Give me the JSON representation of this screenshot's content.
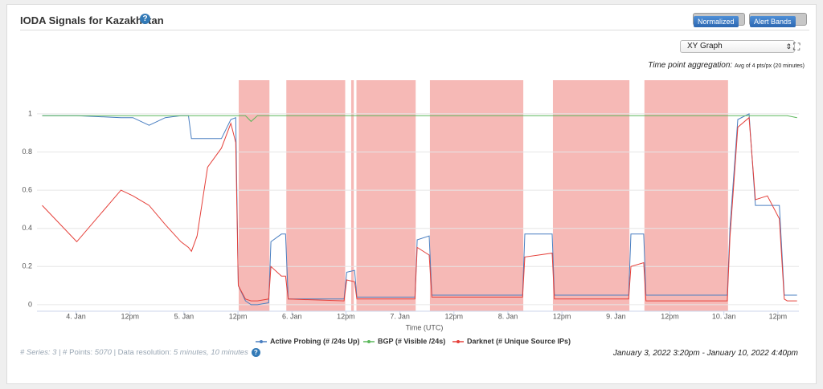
{
  "header": {
    "title": "IODA Signals for Kazakhstan"
  },
  "controls": {
    "normalized": "Normalized",
    "alert_bands": "Alert Bands",
    "view": "XY Graph",
    "aggregation_label": "Time point aggregation:",
    "aggregation_value": "Avg of 4 pts/px (20 minutes)"
  },
  "footer": {
    "series_label": "# Series:",
    "series_count": 3,
    "points_label": "| # Points:",
    "points_count": 5070,
    "resolution_label": "| Data resolution:",
    "resolution": "5 minutes, 10 minutes",
    "range": "January 3, 2022 3:20pm - January 10, 2022 4:40pm"
  },
  "chart_data": {
    "type": "line",
    "x_label": "Time (UTC)",
    "xlim": [
      "2022-01-03T15:20",
      "2022-01-10T16:40"
    ],
    "xticks": [
      {
        "value": "2022-01-04T00:00",
        "label": "4. Jan"
      },
      {
        "value": "2022-01-04T12:00",
        "label": "12pm"
      },
      {
        "value": "2022-01-05T00:00",
        "label": "5. Jan"
      },
      {
        "value": "2022-01-05T12:00",
        "label": "12pm"
      },
      {
        "value": "2022-01-06T00:00",
        "label": "6. Jan"
      },
      {
        "value": "2022-01-06T12:00",
        "label": "12pm"
      },
      {
        "value": "2022-01-07T00:00",
        "label": "7. Jan"
      },
      {
        "value": "2022-01-07T12:00",
        "label": "12pm"
      },
      {
        "value": "2022-01-08T00:00",
        "label": "8. Jan"
      },
      {
        "value": "2022-01-08T12:00",
        "label": "12pm"
      },
      {
        "value": "2022-01-09T00:00",
        "label": "9. Jan"
      },
      {
        "value": "2022-01-09T12:00",
        "label": "12pm"
      },
      {
        "value": "2022-01-10T00:00",
        "label": "10. Jan"
      },
      {
        "value": "2022-01-10T12:00",
        "label": "12pm"
      }
    ],
    "ylim": [
      -0.034,
      1.176
    ],
    "yticks": [
      0,
      0.2,
      0.4,
      0.6,
      0.8,
      1
    ],
    "grid": true,
    "band_color": "#f6b9b6",
    "alert_bands": [
      {
        "from": "2022-01-05T12:10",
        "to": "2022-01-05T19:00"
      },
      {
        "from": "2022-01-05T22:45",
        "to": "2022-01-06T11:50"
      },
      {
        "from": "2022-01-06T13:10",
        "to": "2022-01-06T13:45"
      },
      {
        "from": "2022-01-06T14:20",
        "to": "2022-01-07T03:30"
      },
      {
        "from": "2022-01-07T06:40",
        "to": "2022-01-08T03:25"
      },
      {
        "from": "2022-01-08T10:00",
        "to": "2022-01-09T03:00"
      },
      {
        "from": "2022-01-09T06:20",
        "to": "2022-01-10T00:55"
      }
    ],
    "x": [
      "2022-01-03T16:30",
      "2022-01-04T00:10",
      "2022-01-04T10:00",
      "2022-01-04T12:40",
      "2022-01-04T16:15",
      "2022-01-04T19:50",
      "2022-01-04T23:20",
      "2022-01-05T01:00",
      "2022-01-05T01:40",
      "2022-01-05T02:55",
      "2022-01-05T05:15",
      "2022-01-05T08:20",
      "2022-01-05T10:25",
      "2022-01-05T11:30",
      "2022-01-05T12:05",
      "2022-01-05T13:40",
      "2022-01-05T14:55",
      "2022-01-05T16:20",
      "2022-01-05T18:50",
      "2022-01-05T19:20",
      "2022-01-05T21:40",
      "2022-01-05T22:35",
      "2022-01-05T23:10",
      "2022-01-06T11:35",
      "2022-01-06T12:10",
      "2022-01-06T13:55",
      "2022-01-06T14:25",
      "2022-01-07T03:20",
      "2022-01-07T03:50",
      "2022-01-07T06:30",
      "2022-01-07T07:05",
      "2022-01-08T03:15",
      "2022-01-08T03:45",
      "2022-01-08T09:50",
      "2022-01-08T10:20",
      "2022-01-09T02:50",
      "2022-01-09T03:20",
      "2022-01-09T06:10",
      "2022-01-09T06:40",
      "2022-01-10T00:45",
      "2022-01-10T01:20",
      "2022-01-10T03:05",
      "2022-01-10T05:35",
      "2022-01-10T07:00",
      "2022-01-10T09:40",
      "2022-01-10T12:20",
      "2022-01-10T13:25",
      "2022-01-10T14:05",
      "2022-01-10T16:15"
    ],
    "series": [
      {
        "name": "Active Probing (# /24s Up)",
        "color": "#4a7fc1",
        "values": [
          0.99,
          0.99,
          0.98,
          0.98,
          0.94,
          0.98,
          0.99,
          0.99,
          0.87,
          0.87,
          0.87,
          0.87,
          0.97,
          0.98,
          0.1,
          0.02,
          0.0,
          0.0,
          0.01,
          0.33,
          0.37,
          0.37,
          0.03,
          0.03,
          0.17,
          0.18,
          0.04,
          0.04,
          0.34,
          0.36,
          0.05,
          0.05,
          0.37,
          0.37,
          0.05,
          0.05,
          0.37,
          0.37,
          0.05,
          0.05,
          0.4,
          0.97,
          1.0,
          0.52,
          0.52,
          0.52,
          0.05,
          0.05,
          0.05
        ]
      },
      {
        "name": "BGP (# Visible /24s)",
        "color": "#5cb85c",
        "values": [
          0.99,
          0.99,
          0.99,
          0.99,
          0.99,
          0.99,
          0.99,
          0.99,
          0.99,
          0.99,
          0.99,
          0.99,
          0.99,
          0.99,
          0.99,
          0.99,
          0.96,
          0.99,
          0.99,
          0.99,
          0.99,
          0.99,
          0.99,
          0.99,
          0.99,
          0.99,
          0.99,
          0.99,
          0.99,
          0.99,
          0.99,
          0.99,
          0.99,
          0.99,
          0.99,
          0.99,
          0.99,
          0.99,
          0.99,
          0.99,
          0.99,
          0.99,
          0.99,
          0.99,
          0.99,
          0.99,
          0.99,
          0.99,
          0.98
        ]
      },
      {
        "name": "Darknet (# Unique Source IPs)",
        "color": "#e5403a",
        "values": [
          0.52,
          0.33,
          0.6,
          0.57,
          0.52,
          0.42,
          0.33,
          0.3,
          0.28,
          0.36,
          0.72,
          0.82,
          0.95,
          0.85,
          0.1,
          0.03,
          0.02,
          0.02,
          0.03,
          0.2,
          0.15,
          0.15,
          0.03,
          0.02,
          0.13,
          0.12,
          0.03,
          0.03,
          0.3,
          0.26,
          0.04,
          0.04,
          0.25,
          0.27,
          0.03,
          0.03,
          0.2,
          0.22,
          0.02,
          0.02,
          0.35,
          0.93,
          0.98,
          0.55,
          0.57,
          0.45,
          0.03,
          0.02,
          0.02
        ]
      }
    ]
  }
}
